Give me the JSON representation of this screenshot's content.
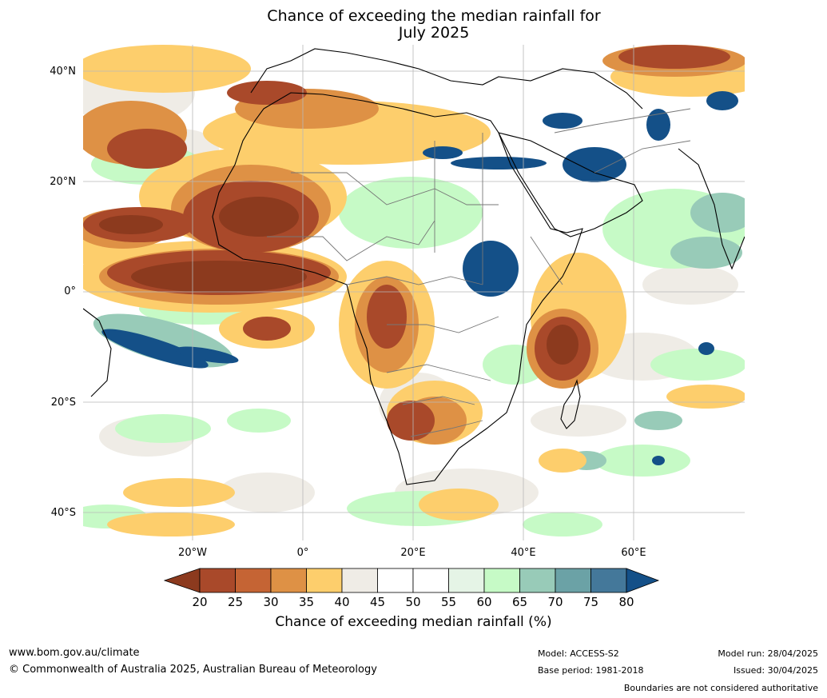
{
  "title_line1": "Chance of exceeding the median rainfall for",
  "title_line2": "July 2025",
  "lat_labels": [
    "40°N",
    "20°N",
    "0°",
    "20°S",
    "40°S"
  ],
  "lon_labels": [
    "20°W",
    "0°",
    "20°E",
    "40°E",
    "60°E"
  ],
  "colorbar": {
    "title": "Chance of exceeding median rainfall (%)",
    "ticks": [
      "20",
      "25",
      "30",
      "35",
      "40",
      "45",
      "50",
      "55",
      "60",
      "65",
      "70",
      "75",
      "80"
    ],
    "colors": [
      "#8c3a1e",
      "#a9492a",
      "#c56434",
      "#de9145",
      "#fdce6c",
      "#efece6",
      "#ffffff",
      "#ffffff",
      "#e5f4e6",
      "#c6fac6",
      "#98cbb8",
      "#6ba2a6",
      "#44789a",
      "#145088"
    ]
  },
  "footer": {
    "website": "www.bom.gov.au/climate",
    "copyright": "© Commonwealth of Australia 2025, Australian Bureau of Meteorology",
    "model": "Model: ACCESS-S2",
    "base_period": "Base period: 1981-2018",
    "model_run": "Model run: 28/04/2025",
    "issued": "Issued: 30/04/2025",
    "disclaimer": "Boundaries are not considered authoritative"
  }
}
